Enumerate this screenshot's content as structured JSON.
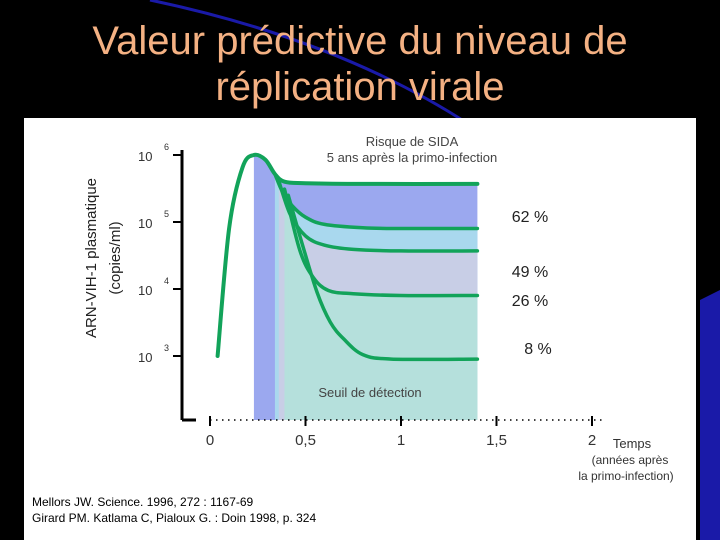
{
  "slide": {
    "title_line1": "Valeur prédictive du niveau de",
    "title_line2": "réplication virale",
    "title_color": "#f4b183",
    "background": "#000000",
    "accent": "#1a1aa8"
  },
  "references": [
    "Mellors JW. Science. 1996, 272 : 1167-69",
    "Girard PM. Katlama C, Pialoux G. : Doin 1998, p. 324"
  ],
  "chart_data": {
    "type": "line",
    "y_axis": {
      "scale": "log",
      "label_lines": [
        "ARN-VIH-1 plasmatique",
        "(copies/ml)"
      ],
      "ticks": [
        {
          "value": 1000,
          "base": "10",
          "exp": "3"
        },
        {
          "value": 10000,
          "base": "10",
          "exp": "4"
        },
        {
          "value": 100000,
          "base": "10",
          "exp": "5"
        },
        {
          "value": 1000000,
          "base": "10",
          "exp": "6"
        }
      ],
      "range": [
        250,
        1500000
      ]
    },
    "x_axis": {
      "ticks": [
        {
          "value": 0,
          "label": "0"
        },
        {
          "value": 0.5,
          "label": "0,5"
        },
        {
          "value": 1,
          "label": "1"
        },
        {
          "value": 1.5,
          "label": "1,5"
        },
        {
          "value": 2,
          "label": "2"
        }
      ],
      "range": [
        0,
        2
      ],
      "label_lines": [
        "Temps",
        "(années après",
        "la primo-infection)"
      ]
    },
    "header_lines": [
      "Risque de SIDA",
      "5 ans après la primo-infection"
    ],
    "detection_label": "Seuil de détection",
    "line_color": "#12a35a",
    "series": [
      {
        "label": "62 %",
        "fill": "#9ba8ef",
        "points": [
          [
            0.04,
            1000
          ],
          [
            0.1,
            80000
          ],
          [
            0.17,
            650000
          ],
          [
            0.23,
            1000000
          ],
          [
            0.29,
            850000
          ],
          [
            0.34,
            520000
          ],
          [
            0.39,
            400000
          ],
          [
            0.5,
            380000
          ],
          [
            0.8,
            370000
          ],
          [
            1.4,
            370000
          ]
        ]
      },
      {
        "label": "49 %",
        "fill": "#a9d8ee",
        "points": [
          [
            0.34,
            520000
          ],
          [
            0.38,
            280000
          ],
          [
            0.43,
            175000
          ],
          [
            0.5,
            118000
          ],
          [
            0.6,
            92000
          ],
          [
            0.8,
            82000
          ],
          [
            1.0,
            80000
          ],
          [
            1.4,
            80000
          ]
        ]
      },
      {
        "label": "26 %",
        "fill": "#c8cee6",
        "points": [
          [
            0.36,
            410000
          ],
          [
            0.42,
            130000
          ],
          [
            0.5,
            62000
          ],
          [
            0.6,
            45000
          ],
          [
            0.75,
            39000
          ],
          [
            1.0,
            37000
          ],
          [
            1.4,
            37000
          ]
        ]
      },
      {
        "label": "8 %",
        "fill": "#b5e0dc",
        "points": [
          [
            0.39,
            310000
          ],
          [
            0.47,
            38000
          ],
          [
            0.54,
            15000
          ],
          [
            0.62,
            9500
          ],
          [
            0.75,
            8500
          ],
          [
            1.0,
            8000
          ],
          [
            1.4,
            8000
          ]
        ]
      },
      {
        "label": "",
        "fill": "#b5e0dc",
        "points": [
          [
            0.41,
            250000
          ],
          [
            0.48,
            50000
          ],
          [
            0.56,
            9000
          ],
          [
            0.63,
            3200
          ],
          [
            0.7,
            1800
          ],
          [
            0.8,
            1050
          ],
          [
            0.95,
            900
          ],
          [
            1.4,
            900
          ]
        ]
      }
    ]
  }
}
